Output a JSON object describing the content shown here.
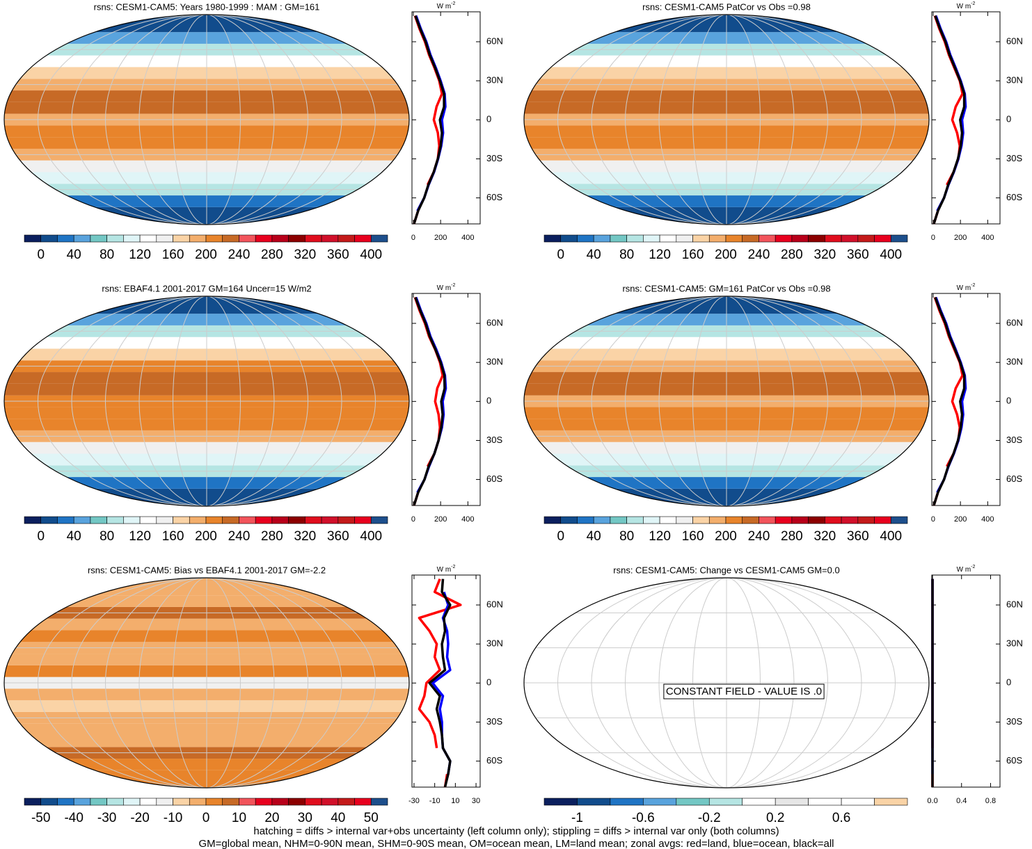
{
  "chart_data": [
    {
      "type": "map",
      "title": "rsns: CESM1-CAM5: Years 1980-1999 : MAM : GM=161",
      "colors": [
        "#0b1f5e",
        "#114c8c",
        "#1f74c4",
        "#59a3dd",
        "#73c7c4",
        "#b5e5e3",
        "#e0f5f7",
        "#ffffff",
        "#f0f0f0",
        "#fad3a6",
        "#f3ae6c",
        "#e8842b",
        "#c76a26",
        "#f2545b",
        "#e8001e",
        "#b8001a",
        "#8c0000",
        "#e00d1d",
        "#d1102a",
        "#c41a1a",
        "#e8001e",
        "#1d4f8c"
      ],
      "colorbar_ticks": [
        0,
        40,
        80,
        120,
        160,
        200,
        240,
        280,
        320,
        360,
        400
      ],
      "units": "W m",
      "units_exp": "-2",
      "lats": [
        -80,
        -70,
        -60,
        -50,
        -40,
        -30,
        -20,
        -10,
        0,
        10,
        20,
        30,
        40,
        50,
        60,
        70,
        80
      ],
      "series": [
        {
          "color": "#ff0000",
          "values": [
            5,
            35,
            null,
            105,
            150,
            180,
            190,
            180,
            150,
            170,
            210,
            190,
            155,
            115,
            85,
            45,
            12
          ]
        },
        {
          "color": "#0000ff",
          "values": [
            null,
            30,
            80,
            112,
            152,
            182,
            205,
            218,
            210,
            235,
            230,
            200,
            165,
            125,
            95,
            55,
            20
          ]
        },
        {
          "color": "#000000",
          "values": [
            5,
            35,
            80,
            110,
            150,
            180,
            200,
            210,
            195,
            225,
            225,
            195,
            160,
            120,
            90,
            50,
            15
          ]
        }
      ],
      "xlim": [
        -10,
        490
      ],
      "xticks": [
        0,
        200,
        400
      ],
      "ylim": [
        -80,
        83
      ],
      "yticks": [
        {
          "value": -60,
          "label": "60S"
        },
        {
          "value": -30,
          "label": "30S"
        },
        0,
        {
          "value": 30,
          "label": "30N"
        },
        {
          "value": 60,
          "label": "60N"
        }
      ]
    },
    {
      "type": "map",
      "title": "rsns: CESM1-CAM5 PatCor vs Obs =0.98",
      "colors": [
        "#0b1f5e",
        "#114c8c",
        "#1f74c4",
        "#59a3dd",
        "#73c7c4",
        "#b5e5e3",
        "#e0f5f7",
        "#ffffff",
        "#f0f0f0",
        "#fad3a6",
        "#f3ae6c",
        "#e8842b",
        "#c76a26",
        "#f2545b",
        "#e8001e",
        "#b8001a",
        "#8c0000",
        "#e00d1d",
        "#d1102a",
        "#c41a1a",
        "#e8001e",
        "#1d4f8c"
      ],
      "colorbar_ticks": [
        0,
        40,
        80,
        120,
        160,
        200,
        240,
        280,
        320,
        360,
        400
      ],
      "units": "W m",
      "units_exp": "-2",
      "lats": [
        -80,
        -70,
        -60,
        -50,
        -40,
        -30,
        -20,
        -10,
        0,
        10,
        20,
        30,
        40,
        50,
        60,
        70,
        80
      ],
      "series": [
        {
          "color": "#ff0000",
          "values": [
            5,
            35,
            null,
            100,
            150,
            185,
            195,
            175,
            140,
            165,
            215,
            195,
            155,
            115,
            85,
            45,
            12
          ]
        },
        {
          "color": "#0000ff",
          "values": [
            null,
            30,
            80,
            112,
            152,
            185,
            208,
            220,
            212,
            238,
            232,
            202,
            165,
            125,
            95,
            55,
            20
          ]
        },
        {
          "color": "#000000",
          "values": [
            5,
            35,
            80,
            110,
            150,
            182,
            202,
            212,
            198,
            228,
            228,
            198,
            160,
            120,
            90,
            50,
            15
          ]
        }
      ],
      "xlim": [
        -10,
        490
      ],
      "xticks": [
        0,
        200,
        400
      ],
      "ylim": [
        -80,
        83
      ],
      "yticks": [
        {
          "value": -60,
          "label": "60S"
        },
        {
          "value": -30,
          "label": "30S"
        },
        0,
        {
          "value": 30,
          "label": "30N"
        },
        {
          "value": 60,
          "label": "60N"
        }
      ]
    },
    {
      "type": "map",
      "title": "rsns: EBAF4.1 2001-2017 GM=164 Uncer=15 W/m2",
      "colors": [
        "#0b1f5e",
        "#114c8c",
        "#1f74c4",
        "#59a3dd",
        "#73c7c4",
        "#b5e5e3",
        "#e0f5f7",
        "#ffffff",
        "#f0f0f0",
        "#fad3a6",
        "#f3ae6c",
        "#e8842b",
        "#c76a26",
        "#f2545b",
        "#e8001e",
        "#b8001a",
        "#8c0000",
        "#e00d1d",
        "#d1102a",
        "#c41a1a",
        "#e8001e",
        "#1d4f8c"
      ],
      "colorbar_ticks": [
        0,
        40,
        80,
        120,
        160,
        200,
        240,
        280,
        320,
        360,
        400
      ],
      "units": "W m",
      "units_exp": "-2",
      "lats": [
        -80,
        -70,
        -60,
        -50,
        -40,
        -30,
        -20,
        -10,
        0,
        10,
        20,
        30,
        40,
        50,
        60,
        70,
        80
      ],
      "series": [
        {
          "color": "#ff0000",
          "values": [
            5,
            35,
            null,
            105,
            155,
            185,
            195,
            185,
            160,
            175,
            215,
            195,
            160,
            115,
            85,
            45,
            12
          ]
        },
        {
          "color": "#0000ff",
          "values": [
            null,
            30,
            82,
            115,
            155,
            185,
            210,
            222,
            215,
            238,
            232,
            205,
            168,
            125,
            95,
            55,
            20
          ]
        },
        {
          "color": "#000000",
          "values": [
            5,
            35,
            82,
            112,
            155,
            185,
            205,
            215,
            205,
            230,
            228,
            200,
            162,
            120,
            90,
            50,
            15
          ]
        }
      ],
      "xlim": [
        -10,
        490
      ],
      "xticks": [
        0,
        200,
        400
      ],
      "ylim": [
        -80,
        83
      ],
      "yticks": [
        {
          "value": -60,
          "label": "60S"
        },
        {
          "value": -30,
          "label": "30S"
        },
        0,
        {
          "value": 30,
          "label": "30N"
        },
        {
          "value": 60,
          "label": "60N"
        }
      ]
    },
    {
      "type": "map",
      "title": "rsns: CESM1-CAM5: GM=161 PatCor vs Obs =0.98",
      "colors": [
        "#0b1f5e",
        "#114c8c",
        "#1f74c4",
        "#59a3dd",
        "#73c7c4",
        "#b5e5e3",
        "#e0f5f7",
        "#ffffff",
        "#f0f0f0",
        "#fad3a6",
        "#f3ae6c",
        "#e8842b",
        "#c76a26",
        "#f2545b",
        "#e8001e",
        "#b8001a",
        "#8c0000",
        "#e00d1d",
        "#d1102a",
        "#c41a1a",
        "#e8001e",
        "#1d4f8c"
      ],
      "colorbar_ticks": [
        0,
        40,
        80,
        120,
        160,
        200,
        240,
        280,
        320,
        360,
        400
      ],
      "units": "W m",
      "units_exp": "-2",
      "lats": [
        -80,
        -70,
        -60,
        -50,
        -40,
        -30,
        -20,
        -10,
        0,
        10,
        20,
        30,
        40,
        50,
        60,
        70,
        80
      ],
      "series": [
        {
          "color": "#ff0000",
          "values": [
            5,
            35,
            null,
            100,
            150,
            185,
            195,
            175,
            140,
            165,
            215,
            195,
            155,
            115,
            85,
            45,
            12
          ]
        },
        {
          "color": "#0000ff",
          "values": [
            null,
            30,
            80,
            112,
            152,
            185,
            208,
            220,
            212,
            238,
            232,
            202,
            165,
            125,
            95,
            55,
            20
          ]
        },
        {
          "color": "#000000",
          "values": [
            5,
            35,
            80,
            110,
            150,
            182,
            202,
            212,
            198,
            228,
            228,
            198,
            160,
            120,
            90,
            50,
            15
          ]
        }
      ],
      "xlim": [
        -10,
        490
      ],
      "xticks": [
        0,
        200,
        400
      ],
      "ylim": [
        -80,
        83
      ],
      "yticks": [
        {
          "value": -60,
          "label": "60S"
        },
        {
          "value": -30,
          "label": "30S"
        },
        0,
        {
          "value": 30,
          "label": "30N"
        },
        {
          "value": 60,
          "label": "60N"
        }
      ]
    },
    {
      "type": "map",
      "title": "rsns: CESM1-CAM5: Bias vs EBAF4.1 2001-2017 GM=-2.2",
      "colors": [
        "#0b1f5e",
        "#114c8c",
        "#1f74c4",
        "#59a3dd",
        "#73c7c4",
        "#b5e5e3",
        "#e0f5f7",
        "#ffffff",
        "#f0f0f0",
        "#fad3a6",
        "#f3ae6c",
        "#e8842b",
        "#c76a26",
        "#f2545b",
        "#e8001e",
        "#b8001a",
        "#8c0000",
        "#e00d1d",
        "#d1102a",
        "#c41a1a",
        "#e8001e",
        "#1d4f8c"
      ],
      "colorbar_ticks": [
        -50,
        -40,
        -30,
        -20,
        -10,
        0,
        10,
        20,
        30,
        40,
        50
      ],
      "units": "W m",
      "units_exp": "-2",
      "lats": [
        -80,
        -70,
        -60,
        -50,
        -40,
        -30,
        -20,
        -10,
        0,
        10,
        20,
        30,
        40,
        50,
        60,
        70,
        80
      ],
      "series": [
        {
          "color": "#ff0000",
          "values": [
            0,
            2,
            null,
            -8,
            -10,
            -15,
            -25,
            -20,
            -18,
            -5,
            -10,
            -8,
            -15,
            -25,
            15,
            -10,
            -5
          ]
        },
        {
          "color": "#0000ff",
          "values": [
            null,
            3,
            5,
            -2,
            -3,
            -3,
            -5,
            -2,
            -12,
            5,
            2,
            3,
            2,
            -2,
            3,
            -1,
            null
          ]
        },
        {
          "color": "#000000",
          "values": [
            0,
            3,
            5,
            -2,
            -3,
            -5,
            -8,
            -5,
            -15,
            0,
            -2,
            -3,
            0,
            -1,
            5,
            -3,
            -2
          ]
        }
      ],
      "xlim": [
        -32,
        34
      ],
      "xticks": [
        -30,
        -10,
        10,
        30
      ],
      "ylim": [
        -80,
        83
      ],
      "yticks": [
        {
          "value": -60,
          "label": "60S"
        },
        {
          "value": -30,
          "label": "30S"
        },
        0,
        {
          "value": 30,
          "label": "30N"
        },
        {
          "value": 60,
          "label": "60N"
        }
      ]
    },
    {
      "type": "map",
      "title": "rsns: CESM1-CAM5: Change vs CESM1-CAM5 GM=0.0",
      "annotation": "CONSTANT FIELD - VALUE IS .0",
      "colors": [
        "#0b1f5e",
        "#114c8c",
        "#1f74c4",
        "#59a3dd",
        "#73c7c4",
        "#b5e5e3",
        "#ffffff",
        "#e6e6e6",
        "#ffffff",
        "#ffffff",
        "#fad3a6"
      ],
      "colorbar_ticks": [
        -1,
        -0.6,
        -0.2,
        0.2,
        0.6
      ],
      "units": "W m",
      "units_exp": "-2",
      "lats": [
        -80,
        -70,
        -60,
        -50,
        -40,
        -30,
        -20,
        -10,
        0,
        10,
        20,
        30,
        40,
        50,
        60,
        70,
        80
      ],
      "series": [
        {
          "color": "#ff0000",
          "values": [
            0,
            0,
            null,
            0,
            0,
            0,
            0,
            0,
            0,
            0,
            0,
            0,
            0,
            0,
            0,
            0,
            0
          ]
        },
        {
          "color": "#0000ff",
          "values": [
            null,
            0,
            0,
            0,
            0,
            0,
            0,
            0,
            0,
            0,
            0,
            0,
            0,
            0,
            0,
            0,
            0
          ]
        },
        {
          "color": "#000000",
          "values": [
            0,
            0,
            0,
            0,
            0,
            0,
            0,
            0,
            0,
            0,
            0,
            0,
            0,
            0,
            0,
            0,
            0
          ]
        }
      ],
      "xlim": [
        -0.01,
        0.93
      ],
      "xticks": [
        {
          "value": 0,
          "label": "0.0"
        },
        0.4,
        0.8
      ],
      "ylim": [
        -80,
        83
      ],
      "yticks": [
        {
          "value": -60,
          "label": "60S"
        },
        {
          "value": -30,
          "label": "30S"
        },
        0,
        {
          "value": 30,
          "label": "30N"
        },
        {
          "value": 60,
          "label": "60N"
        }
      ]
    }
  ],
  "footer": [
    "hatching = diffs > internal var+obs uncertainty (left column only); stippling = diffs > internal var only (both columns)",
    "GM=global mean, NHM=0-90N mean, SHM=0-90S mean, OM=ocean mean, LM=land mean; zonal avgs: red=land, blue=ocean, black=all"
  ]
}
